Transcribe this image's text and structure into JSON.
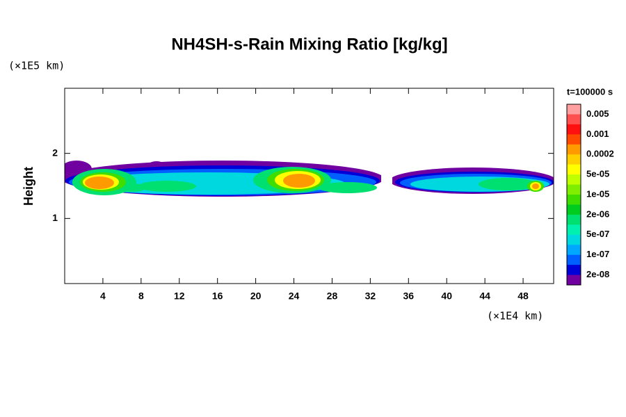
{
  "chart_data": {
    "type": "contour",
    "title": "NH4SH-s-Rain Mixing Ratio [kg/kg]",
    "ylabel": "Height",
    "y_unit": "(×1E5 km)",
    "x_unit": "(×1E4 km)",
    "time_label": "t=100000 s",
    "xlim": [
      0,
      51.2
    ],
    "xticks": [
      4,
      8,
      12,
      16,
      20,
      24,
      28,
      32,
      36,
      40,
      44,
      48
    ],
    "ylim": [
      0,
      3
    ],
    "yticks": [
      1,
      2
    ],
    "colorbar": {
      "colors": [
        "#ffa0a0",
        "#ff5050",
        "#ff1010",
        "#ff4a00",
        "#ff9a00",
        "#ffd000",
        "#ffff00",
        "#c0ff00",
        "#80ee00",
        "#40dd00",
        "#00cc20",
        "#00e070",
        "#00f0b0",
        "#00d8e0",
        "#00a8ff",
        "#0060ff",
        "#0000d8",
        "#7000a0"
      ],
      "labels": [
        "0.005",
        "0.001",
        "0.0002",
        "5e-05",
        "1e-05",
        "2e-06",
        "5e-07",
        "1e-07",
        "2e-08"
      ]
    }
  }
}
